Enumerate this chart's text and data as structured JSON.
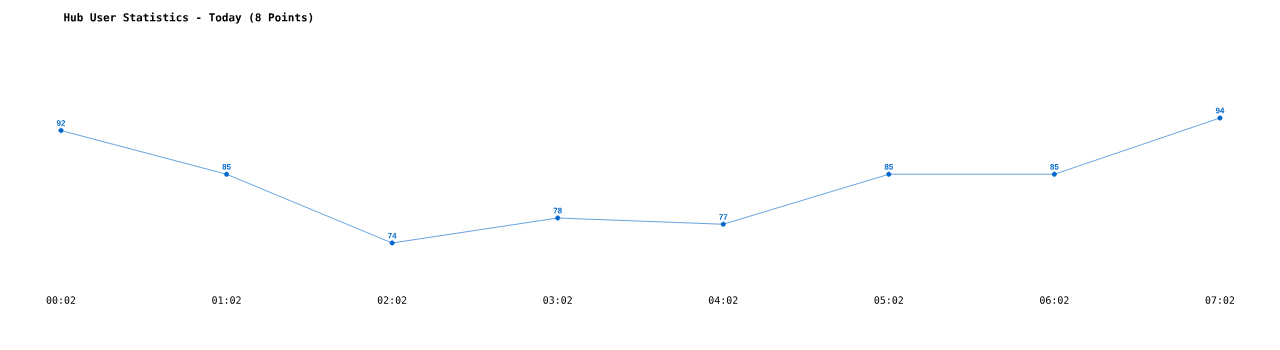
{
  "chart_data": {
    "type": "line",
    "title": "Hub User Statistics - Today (8 Points)",
    "categories": [
      "00:02",
      "01:02",
      "02:02",
      "03:02",
      "04:02",
      "05:02",
      "06:02",
      "07:02"
    ],
    "values": [
      92,
      85,
      74,
      78,
      77,
      85,
      85,
      94
    ],
    "color": "#0066cc",
    "marker": "circle",
    "data_labels": true
  }
}
